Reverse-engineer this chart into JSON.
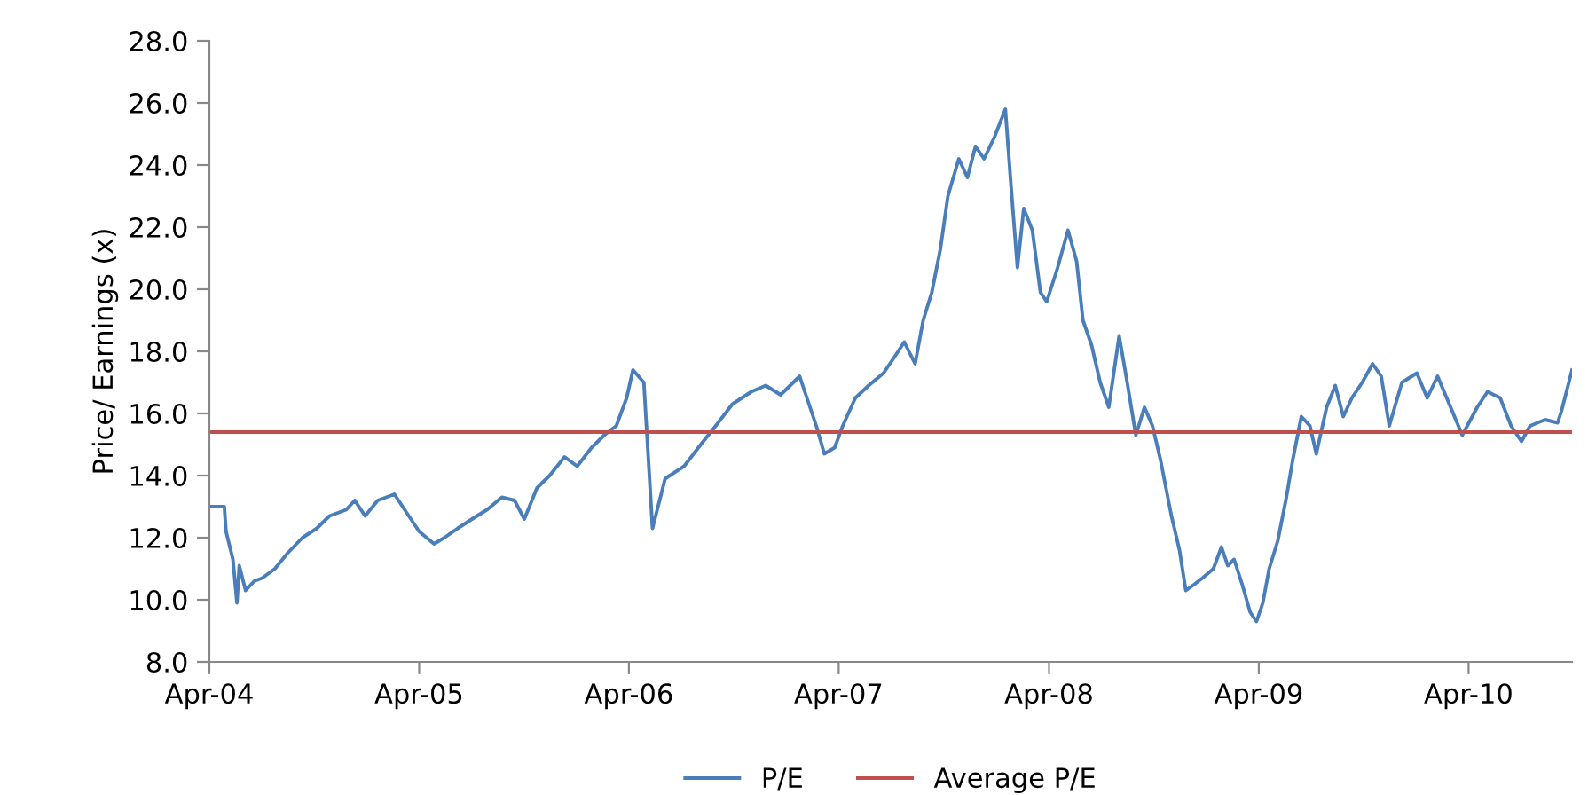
{
  "chart_data": {
    "type": "line",
    "ylabel": "Price/ Earnings (x)",
    "xlim": [
      "2004-04-01",
      "2010-09-28"
    ],
    "xticks": [
      {
        "value": "2004-04-01",
        "label": "Apr-04"
      },
      {
        "value": "2005-04-01",
        "label": "Apr-05"
      },
      {
        "value": "2006-04-01",
        "label": "Apr-06"
      },
      {
        "value": "2007-04-01",
        "label": "Apr-07"
      },
      {
        "value": "2008-04-01",
        "label": "Apr-08"
      },
      {
        "value": "2009-04-01",
        "label": "Apr-09"
      },
      {
        "value": "2010-04-01",
        "label": "Apr-10"
      }
    ],
    "ylim": [
      8,
      28
    ],
    "yticks": [
      {
        "value": 8,
        "label": "8.0"
      },
      {
        "value": 10,
        "label": "10.0"
      },
      {
        "value": 12,
        "label": "12.0"
      },
      {
        "value": 14,
        "label": "14.0"
      },
      {
        "value": 16,
        "label": "16.0"
      },
      {
        "value": 18,
        "label": "18.0"
      },
      {
        "value": 20,
        "label": "20.0"
      },
      {
        "value": 22,
        "label": "22.0"
      },
      {
        "value": 24,
        "label": "24.0"
      },
      {
        "value": 26,
        "label": "26.0"
      },
      {
        "value": 28,
        "label": "28.0"
      }
    ],
    "legend": "bottom",
    "line_style": "solid",
    "marker": "none",
    "series": [
      {
        "name": "P/E",
        "color": "#4a7ebb",
        "x": [
          "2004-04-01",
          "2004-04-27",
          "2004-04-30",
          "2004-05-12",
          "2004-05-19",
          "2004-05-23",
          "2004-06-03",
          "2004-06-18",
          "2004-07-02",
          "2004-07-24",
          "2004-08-15",
          "2004-09-10",
          "2004-10-05",
          "2004-10-27",
          "2004-11-25",
          "2004-12-10",
          "2004-12-28",
          "2005-01-19",
          "2005-02-17",
          "2005-03-14",
          "2005-04-01",
          "2005-04-27",
          "2005-05-15",
          "2005-06-07",
          "2005-07-02",
          "2005-07-28",
          "2005-08-23",
          "2005-09-14",
          "2005-10-01",
          "2005-10-23",
          "2005-11-14",
          "2005-12-10",
          "2006-01-01",
          "2006-01-26",
          "2006-02-17",
          "2006-03-10",
          "2006-03-28",
          "2006-04-08",
          "2006-04-27",
          "2006-05-12",
          "2006-06-03",
          "2006-07-06",
          "2006-08-04",
          "2006-08-30",
          "2006-09-28",
          "2006-10-31",
          "2006-11-25",
          "2006-12-21",
          "2007-01-23",
          "2007-02-21",
          "2007-03-07",
          "2007-03-25",
          "2007-04-08",
          "2007-04-30",
          "2007-05-23",
          "2007-06-18",
          "2007-07-10",
          "2007-07-24",
          "2007-08-12",
          "2007-08-26",
          "2007-09-10",
          "2007-09-25",
          "2007-10-08",
          "2007-10-27",
          "2007-11-11",
          "2007-11-25",
          "2007-12-10",
          "2007-12-28",
          "2008-01-16",
          "2008-01-26",
          "2008-02-06",
          "2008-02-17",
          "2008-03-03",
          "2008-03-17",
          "2008-03-28",
          "2008-04-16",
          "2008-05-04",
          "2008-05-19",
          "2008-05-30",
          "2008-06-14",
          "2008-06-29",
          "2008-07-14",
          "2008-08-01",
          "2008-08-15",
          "2008-08-30",
          "2008-09-14",
          "2008-09-28",
          "2008-10-12",
          "2008-10-31",
          "2008-11-14",
          "2008-11-25",
          "2008-12-10",
          "2008-12-24",
          "2009-01-12",
          "2009-01-26",
          "2009-02-06",
          "2009-02-17",
          "2009-03-03",
          "2009-03-17",
          "2009-03-28",
          "2009-04-08",
          "2009-04-19",
          "2009-05-04",
          "2009-05-19",
          "2009-05-30",
          "2009-06-14",
          "2009-06-29",
          "2009-07-10",
          "2009-07-28",
          "2009-08-12",
          "2009-08-26",
          "2009-09-10",
          "2009-09-28",
          "2009-10-16",
          "2009-10-31",
          "2009-11-14",
          "2009-12-06",
          "2010-01-01",
          "2010-01-19",
          "2010-02-06",
          "2010-03-03",
          "2010-03-21",
          "2010-04-16",
          "2010-05-04",
          "2010-05-26",
          "2010-06-14",
          "2010-07-02",
          "2010-07-17",
          "2010-08-12",
          "2010-09-03",
          "2010-09-10",
          "2010-09-28"
        ],
        "values": [
          13.0,
          13.0,
          12.2,
          11.3,
          9.9,
          11.1,
          10.3,
          10.6,
          10.7,
          11.0,
          11.5,
          12.0,
          12.3,
          12.7,
          12.9,
          13.2,
          12.7,
          13.2,
          13.4,
          12.7,
          12.2,
          11.8,
          12.0,
          12.3,
          12.6,
          12.9,
          13.3,
          13.2,
          12.6,
          13.6,
          14.0,
          14.6,
          14.3,
          14.9,
          15.3,
          15.6,
          16.5,
          17.4,
          17.0,
          12.3,
          13.9,
          14.3,
          15.0,
          15.6,
          16.3,
          16.7,
          16.9,
          16.6,
          17.2,
          15.6,
          14.7,
          14.9,
          15.6,
          16.5,
          16.9,
          17.3,
          17.9,
          18.3,
          17.6,
          19.0,
          19.9,
          21.3,
          23.0,
          24.2,
          23.6,
          24.6,
          24.2,
          24.9,
          25.8,
          23.3,
          20.7,
          22.6,
          21.9,
          19.9,
          19.6,
          20.7,
          21.9,
          20.9,
          19.0,
          18.2,
          17.0,
          16.2,
          18.5,
          17.0,
          15.3,
          16.2,
          15.6,
          14.5,
          12.7,
          11.6,
          10.3,
          10.5,
          10.7,
          11.0,
          11.7,
          11.1,
          11.3,
          10.5,
          9.6,
          9.3,
          9.9,
          11.0,
          11.9,
          13.3,
          14.5,
          15.9,
          15.6,
          14.7,
          16.2,
          16.9,
          15.9,
          16.5,
          17.0,
          17.6,
          17.2,
          15.6,
          17.0,
          17.3,
          16.5,
          17.2,
          16.1,
          15.3,
          16.2,
          16.7,
          16.5,
          15.6,
          15.1,
          15.6,
          15.8,
          15.7,
          16.1,
          17.4
        ]
      }
    ],
    "ref_lines": [
      {
        "axis": "y",
        "value": 15.4,
        "label": "Average P/E",
        "color": "#c0504d",
        "line_style": "solid"
      }
    ]
  }
}
